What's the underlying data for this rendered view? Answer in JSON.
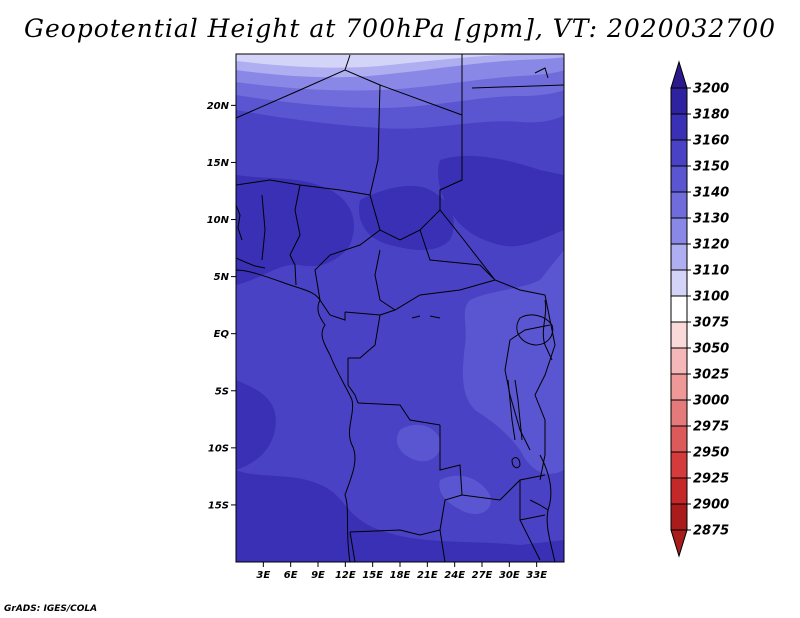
{
  "title": "Geopotential Height at 700hPa [gpm], VT: 2020032700",
  "credit": "GrADS: IGES/COLA",
  "map": {
    "lon_range": [
      0,
      36
    ],
    "lat_range": [
      -20,
      24.5
    ],
    "lat_ticks": [
      {
        "lat": 20,
        "label": "20N"
      },
      {
        "lat": 15,
        "label": "15N"
      },
      {
        "lat": 10,
        "label": "10N"
      },
      {
        "lat": 5,
        "label": "5N"
      },
      {
        "lat": 0,
        "label": "EQ"
      },
      {
        "lat": -5,
        "label": "5S"
      },
      {
        "lat": -10,
        "label": "10S"
      },
      {
        "lat": -15,
        "label": "15S"
      }
    ],
    "lon_ticks": [
      {
        "lon": 3,
        "label": "3E"
      },
      {
        "lon": 6,
        "label": "6E"
      },
      {
        "lon": 9,
        "label": "9E"
      },
      {
        "lon": 12,
        "label": "12E"
      },
      {
        "lon": 15,
        "label": "15E"
      },
      {
        "lon": 18,
        "label": "18E"
      },
      {
        "lon": 21,
        "label": "21E"
      },
      {
        "lon": 24,
        "label": "24E"
      },
      {
        "lon": 27,
        "label": "27E"
      },
      {
        "lon": 30,
        "label": "30E"
      },
      {
        "lon": 33,
        "label": "33E"
      }
    ]
  },
  "colorbar": {
    "levels": [
      {
        "label": "3200",
        "color": "#2a1a8c"
      },
      {
        "label": "3180",
        "color": "#2e22a0"
      },
      {
        "label": "3160",
        "color": "#3a30b5"
      },
      {
        "label": "3150",
        "color": "#4a42c4"
      },
      {
        "label": "3140",
        "color": "#5a55d0"
      },
      {
        "label": "3130",
        "color": "#706cdc"
      },
      {
        "label": "3120",
        "color": "#8a88e6"
      },
      {
        "label": "3110",
        "color": "#aeaef0"
      },
      {
        "label": "3100",
        "color": "#d4d4f8"
      },
      {
        "label": "3075",
        "color": "#ffffff"
      },
      {
        "label": "3050",
        "color": "#fad9d9"
      },
      {
        "label": "3025",
        "color": "#f5b8b8"
      },
      {
        "label": "3000",
        "color": "#ef9898"
      },
      {
        "label": "2975",
        "color": "#e47a7a"
      },
      {
        "label": "2950",
        "color": "#dc5a5a"
      },
      {
        "label": "2925",
        "color": "#d43c3c"
      },
      {
        "label": "2900",
        "color": "#c42828"
      },
      {
        "label": "2875",
        "color": "#a81c1c"
      }
    ]
  }
}
